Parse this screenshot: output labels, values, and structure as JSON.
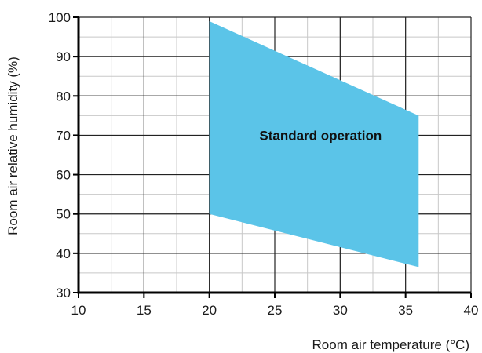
{
  "chart_data": {
    "type": "area",
    "title": "",
    "xlabel": "Room air temperature (°C)",
    "ylabel": "Room air relative humidity (%)",
    "xlim": [
      10,
      40
    ],
    "ylim": [
      30,
      100
    ],
    "x_ticks": [
      10,
      15,
      20,
      25,
      30,
      35,
      40
    ],
    "y_ticks": [
      30,
      40,
      50,
      60,
      70,
      80,
      90,
      100
    ],
    "x_minor_step": 2.5,
    "y_minor_step": 5,
    "grid": true,
    "series": [
      {
        "name": "Standard operation",
        "color": "#5bc4e8",
        "polygon": [
          {
            "x": 20,
            "y": 99
          },
          {
            "x": 36,
            "y": 75
          },
          {
            "x": 36,
            "y": 36.5
          },
          {
            "x": 20,
            "y": 50
          }
        ],
        "label_at": {
          "x": 28.5,
          "y": 70
        }
      }
    ]
  }
}
